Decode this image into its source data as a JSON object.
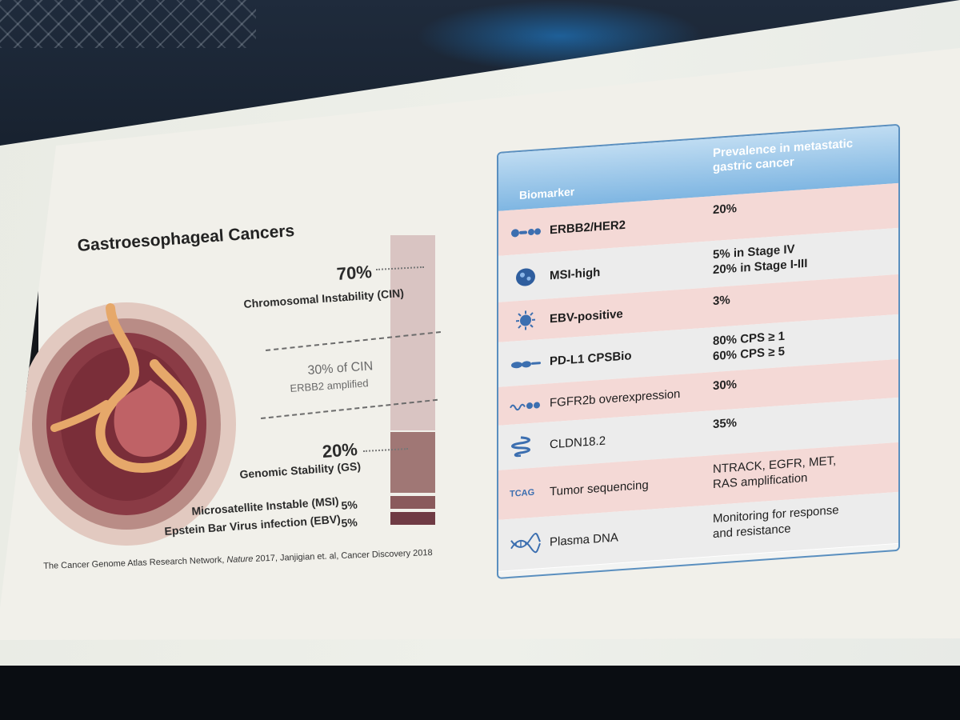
{
  "slide": {
    "title": "Gastroesophageal Cancers",
    "citation_prefix": "The Cancer Genome Atlas Research Network, ",
    "citation_journal1": "Nature",
    "citation_mid": " 2017, Janjigian et. al,  Cancer Discovery 2018",
    "cin_pct": "70%",
    "cin_label": "Chromosomal Instability (CIN)",
    "cin_sub_pct": "30% of CIN",
    "cin_sub_label": "ERBB2 amplified",
    "gs_pct": "20%",
    "gs_label": "Genomic Stability (GS)",
    "msi_label": "Microsatellite Instable (MSI)",
    "msi_pct": "5%",
    "ebv_label": "Epstein Bar Virus infection (EBV)",
    "ebv_pct": "5%"
  },
  "subtypes": {
    "cin": 0.7,
    "gs": 0.2,
    "msi": 0.05,
    "ebv": 0.05
  },
  "table": {
    "header_biomarker": "Biomarker",
    "header_prevalence": "Prevalence in metastatic gastric cancer",
    "rows": [
      {
        "icon": "protein-chain-icon",
        "biomarker": "ERBB2/HER2",
        "bold": true,
        "prevalence": [
          "20%"
        ]
      },
      {
        "icon": "cell-icon",
        "biomarker": "MSI-high",
        "bold": true,
        "prevalence": [
          "5% in Stage IV",
          "20% in Stage I-III"
        ]
      },
      {
        "icon": "virus-icon",
        "biomarker": "EBV-positive",
        "bold": true,
        "prevalence": [
          "3%"
        ]
      },
      {
        "icon": "antibody-icon",
        "biomarker": "PD-L1 CPSBio",
        "bold": true,
        "prevalence": [
          "80% CPS ≥ 1",
          "60% CPS ≥ 5"
        ]
      },
      {
        "icon": "receptor-icon",
        "biomarker": "FGFR2b overexpression",
        "bold": false,
        "prevalence": [
          "30%"
        ]
      },
      {
        "icon": "membrane-protein-icon",
        "biomarker": "CLDN18.2",
        "bold": false,
        "prevalence": [
          "35%"
        ]
      },
      {
        "icon": "dna-sequence-icon",
        "icon_text": "TCAG",
        "biomarker": "Tumor sequencing",
        "bold": false,
        "prevalence": [
          "NTRACK, EGFR, MET,",
          "RAS amplification"
        ]
      },
      {
        "icon": "dna-helix-icon",
        "biomarker": "Plasma DNA",
        "bold": false,
        "prevalence": [
          "Monitoring for response",
          "and resistance"
        ]
      }
    ]
  },
  "colors": {
    "pink_row": "#f4d9d6",
    "grey_row": "#ececec",
    "header_blue": "#7fb6e2",
    "bar_cin": "#d9c4c2",
    "bar_gs": "#a07775",
    "bar_msi": "#8a5a5c",
    "bar_ebv": "#6f3b44"
  }
}
